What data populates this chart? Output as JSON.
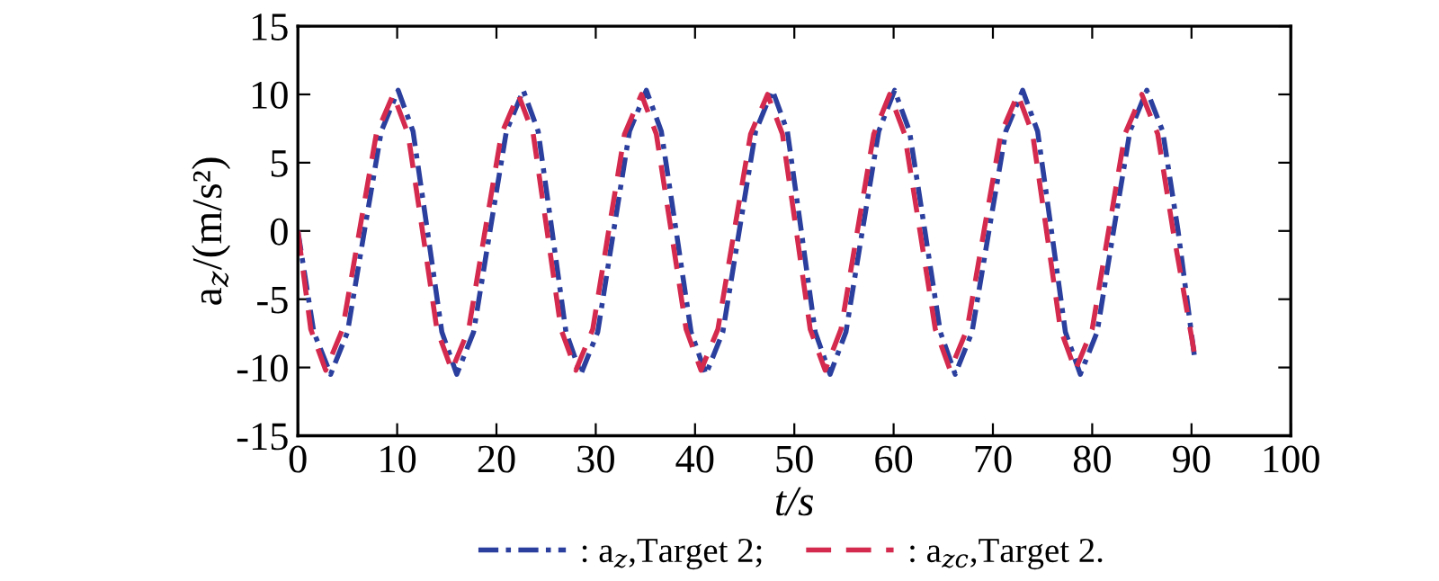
{
  "chart_data": {
    "type": "line",
    "xlabel": "t/s",
    "ylabel": "a$_{z}$/(m/s²)",
    "xlim": [
      0,
      100
    ],
    "xticks": [
      0,
      10,
      20,
      30,
      40,
      50,
      60,
      70,
      80,
      90,
      100
    ],
    "ylim": [
      -15,
      15
    ],
    "yticks": [
      -15,
      -10,
      -5,
      0,
      5,
      10,
      15
    ],
    "grid": false,
    "legend": "bottom",
    "marker": "none",
    "series": [
      {
        "name": ": a$_{z}$,Target 2;",
        "color": "#2b3f9e",
        "line_style": "dashdot",
        "x": [
          0,
          1.6,
          3.3,
          5.0,
          6.7,
          8.4,
          10.1,
          11.6,
          13.05,
          14.5,
          16.0,
          17.7,
          19.35,
          21.0,
          22.7,
          24.2,
          25.6,
          27.0,
          28.5,
          30.2,
          31.8,
          33.4,
          35.1,
          36.6,
          38.1,
          39.6,
          41.1,
          42.8,
          44.45,
          46.1,
          47.8,
          49.3,
          50.7,
          52.1,
          53.6,
          55.2,
          56.85,
          58.5,
          60.1,
          61.6,
          63.15,
          64.7,
          66.2,
          67.9,
          69.6,
          71.3,
          73.0,
          74.5,
          75.9,
          77.3,
          78.8,
          80.5,
          82.15,
          83.8,
          85.5,
          87.1,
          88.65,
          90.3
        ],
        "values": [
          0,
          -7.4,
          -10.5,
          -7.4,
          0,
          7.3,
          10.3,
          7.3,
          0,
          -7.4,
          -10.5,
          -7.4,
          0,
          7.3,
          10.3,
          7.3,
          0,
          -7.4,
          -10.5,
          -7.4,
          0,
          7.3,
          10.3,
          7.3,
          0,
          -7.4,
          -10.5,
          -7.4,
          0,
          7.3,
          10.3,
          7.3,
          0,
          -7.4,
          -10.5,
          -7.4,
          0,
          7.3,
          10.3,
          7.3,
          0,
          -7.4,
          -10.5,
          -7.4,
          0,
          7.3,
          10.3,
          7.3,
          0,
          -7.4,
          -10.5,
          -7.4,
          0,
          7.3,
          10.3,
          7.3,
          0,
          -9.2
        ]
      },
      {
        "name": ": a$_{zc}$,Target 2.",
        "color": "#d42a4e",
        "line_style": "dashed",
        "x": [
          0,
          1.3,
          2.8,
          4.5,
          6.2,
          7.9,
          9.6,
          11.1,
          12.55,
          14.0,
          15.5,
          17.2,
          18.85,
          20.5,
          22.2,
          23.7,
          25.1,
          26.5,
          28.0,
          29.7,
          31.3,
          32.9,
          34.6,
          36.1,
          37.6,
          39.1,
          40.6,
          42.3,
          43.95,
          45.6,
          47.3,
          48.8,
          50.2,
          51.6,
          53.1,
          54.7,
          56.35,
          58.0,
          59.6,
          61.1,
          62.65,
          64.2,
          65.7,
          67.4,
          69.1,
          70.8,
          72.5,
          74.0,
          75.4,
          76.8,
          78.3,
          80.0,
          81.65,
          83.3,
          85.0,
          86.6,
          88.15,
          90.3
        ],
        "values": [
          0,
          -7.2,
          -10.2,
          -7.2,
          0,
          7.1,
          10.0,
          7.1,
          0,
          -7.2,
          -10.2,
          -7.2,
          0,
          7.1,
          10.0,
          7.1,
          0,
          -7.2,
          -10.2,
          -7.2,
          0,
          7.1,
          10.0,
          7.1,
          0,
          -7.2,
          -10.2,
          -7.2,
          0,
          7.1,
          10.0,
          7.1,
          0,
          -7.2,
          -10.2,
          -7.2,
          0,
          7.1,
          10.0,
          7.1,
          0,
          -7.2,
          -10.2,
          -7.2,
          0,
          7.1,
          10.0,
          7.1,
          0,
          -7.2,
          -10.2,
          -7.2,
          0,
          7.1,
          10.0,
          7.1,
          0,
          -9.0
        ]
      }
    ]
  }
}
